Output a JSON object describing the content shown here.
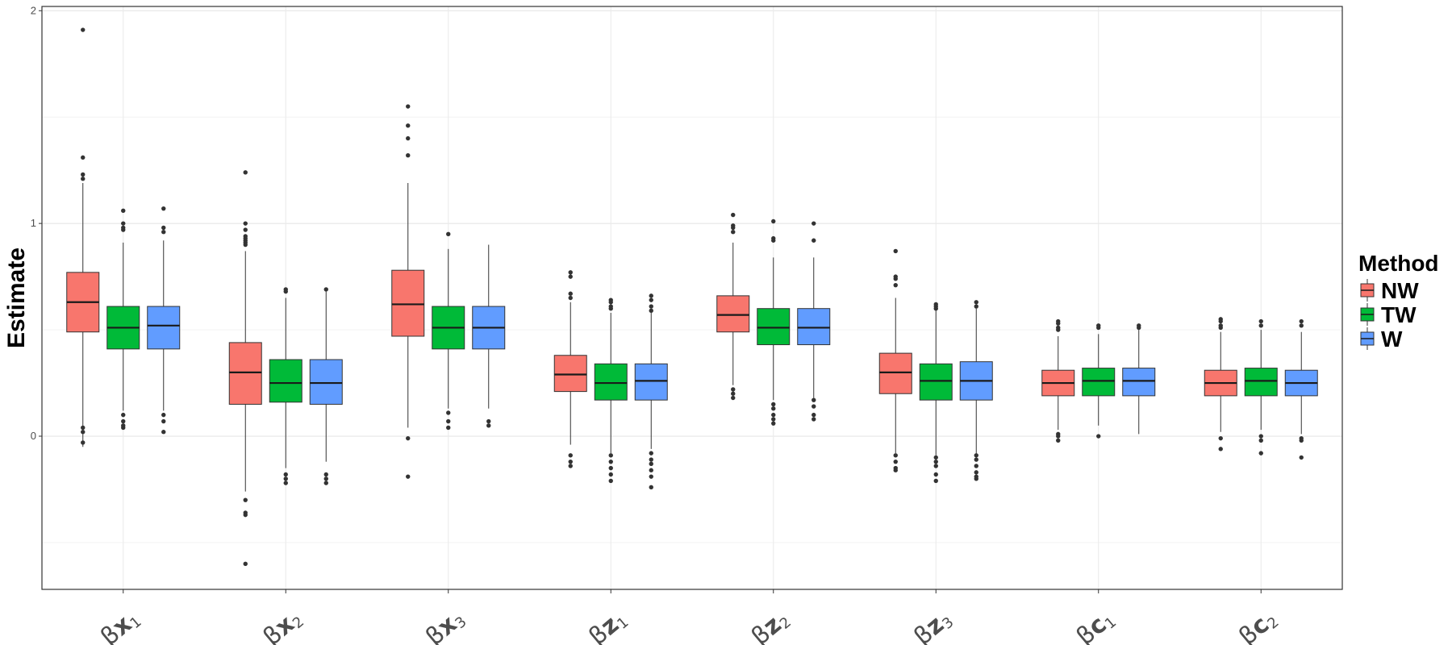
{
  "chart_data": {
    "type": "box",
    "ylabel": "Estimate",
    "ylim": [
      -0.72,
      2.02
    ],
    "yticks": [
      0,
      1,
      2
    ],
    "grid": true,
    "legend": {
      "title": "Method",
      "position": "right"
    },
    "categories": [
      {
        "greek": "β",
        "var": "x",
        "sub": "1"
      },
      {
        "greek": "β",
        "var": "x",
        "sub": "2"
      },
      {
        "greek": "β",
        "var": "x",
        "sub": "3"
      },
      {
        "greek": "β",
        "var": "z",
        "sub": "1"
      },
      {
        "greek": "β",
        "var": "z",
        "sub": "2"
      },
      {
        "greek": "β",
        "var": "z",
        "sub": "3"
      },
      {
        "greek": "β",
        "var": "c",
        "sub": "1"
      },
      {
        "greek": "β",
        "var": "c",
        "sub": "2"
      }
    ],
    "series": [
      {
        "name": "NW",
        "color": "#F8766D",
        "boxes": [
          {
            "lw": -0.05,
            "q1": 0.49,
            "med": 0.63,
            "q3": 0.77,
            "uw": 1.19,
            "out": [
              1.91,
              1.31,
              1.23,
              1.21,
              0.04,
              0.02,
              -0.03
            ]
          },
          {
            "lw": -0.26,
            "q1": 0.15,
            "med": 0.3,
            "q3": 0.44,
            "uw": 0.87,
            "out": [
              1.24,
              1.0,
              0.97,
              0.94,
              0.93,
              0.92,
              0.91,
              0.9,
              -0.3,
              -0.36,
              -0.37,
              -0.6
            ]
          },
          {
            "lw": 0.04,
            "q1": 0.47,
            "med": 0.62,
            "q3": 0.78,
            "uw": 1.19,
            "out": [
              1.55,
              1.46,
              1.4,
              1.32,
              -0.01,
              -0.19
            ]
          },
          {
            "lw": -0.04,
            "q1": 0.21,
            "med": 0.29,
            "q3": 0.38,
            "uw": 0.63,
            "out": [
              0.77,
              0.75,
              0.67,
              0.65,
              -0.09,
              -0.12,
              -0.14
            ]
          },
          {
            "lw": 0.24,
            "q1": 0.49,
            "med": 0.57,
            "q3": 0.66,
            "uw": 0.91,
            "out": [
              1.04,
              0.99,
              0.98,
              0.96,
              0.22,
              0.2,
              0.18
            ]
          },
          {
            "lw": -0.08,
            "q1": 0.2,
            "med": 0.3,
            "q3": 0.39,
            "uw": 0.65,
            "out": [
              0.87,
              0.75,
              0.74,
              0.71,
              -0.09,
              -0.12,
              -0.15,
              -0.16
            ]
          },
          {
            "lw": 0.03,
            "q1": 0.19,
            "med": 0.25,
            "q3": 0.31,
            "uw": 0.47,
            "out": [
              0.54,
              0.53,
              0.51,
              0.5,
              0.01,
              0.0,
              -0.02
            ]
          },
          {
            "lw": 0.02,
            "q1": 0.19,
            "med": 0.25,
            "q3": 0.31,
            "uw": 0.49,
            "out": [
              0.55,
              0.54,
              0.52,
              0.51,
              -0.01,
              -0.06
            ]
          }
        ]
      },
      {
        "name": "TW",
        "color": "#00BA38",
        "boxes": [
          {
            "lw": 0.12,
            "q1": 0.41,
            "med": 0.51,
            "q3": 0.61,
            "uw": 0.91,
            "out": [
              1.06,
              1.0,
              0.98,
              0.97,
              0.1,
              0.07,
              0.05,
              0.04
            ]
          },
          {
            "lw": -0.15,
            "q1": 0.16,
            "med": 0.25,
            "q3": 0.36,
            "uw": 0.65,
            "out": [
              0.69,
              0.68,
              -0.18,
              -0.2,
              -0.22
            ]
          },
          {
            "lw": 0.13,
            "q1": 0.41,
            "med": 0.51,
            "q3": 0.61,
            "uw": 0.88,
            "out": [
              0.95,
              0.11,
              0.07,
              0.04
            ]
          },
          {
            "lw": -0.08,
            "q1": 0.17,
            "med": 0.25,
            "q3": 0.34,
            "uw": 0.58,
            "out": [
              0.64,
              0.63,
              0.61,
              0.6,
              -0.09,
              -0.12,
              -0.15,
              -0.18,
              -0.21
            ]
          },
          {
            "lw": 0.17,
            "q1": 0.43,
            "med": 0.51,
            "q3": 0.6,
            "uw": 0.84,
            "out": [
              1.01,
              0.93,
              0.92,
              0.15,
              0.13,
              0.1,
              0.08,
              0.06
            ]
          },
          {
            "lw": -0.09,
            "q1": 0.17,
            "med": 0.26,
            "q3": 0.34,
            "uw": 0.6,
            "out": [
              0.62,
              0.61,
              0.6,
              -0.1,
              -0.12,
              -0.14,
              -0.18,
              -0.21
            ]
          },
          {
            "lw": 0.05,
            "q1": 0.19,
            "med": 0.26,
            "q3": 0.32,
            "uw": 0.48,
            "out": [
              0.52,
              0.51,
              0.0
            ]
          },
          {
            "lw": 0.03,
            "q1": 0.19,
            "med": 0.26,
            "q3": 0.32,
            "uw": 0.5,
            "out": [
              0.54,
              0.52,
              0.0,
              -0.02,
              -0.08
            ]
          }
        ]
      },
      {
        "name": "W",
        "color": "#619CFF",
        "boxes": [
          {
            "lw": 0.12,
            "q1": 0.41,
            "med": 0.52,
            "q3": 0.61,
            "uw": 0.92,
            "out": [
              1.07,
              0.98,
              0.96,
              0.1,
              0.07,
              0.02
            ]
          },
          {
            "lw": -0.12,
            "q1": 0.15,
            "med": 0.25,
            "q3": 0.36,
            "uw": 0.68,
            "out": [
              0.69,
              -0.18,
              -0.2,
              -0.22
            ]
          },
          {
            "lw": 0.13,
            "q1": 0.41,
            "med": 0.51,
            "q3": 0.61,
            "uw": 0.9,
            "out": [
              0.07,
              0.05
            ]
          },
          {
            "lw": -0.06,
            "q1": 0.17,
            "med": 0.26,
            "q3": 0.34,
            "uw": 0.58,
            "out": [
              0.66,
              0.64,
              0.61,
              0.59,
              -0.08,
              -0.11,
              -0.13,
              -0.16,
              -0.19,
              -0.24
            ]
          },
          {
            "lw": 0.18,
            "q1": 0.43,
            "med": 0.51,
            "q3": 0.6,
            "uw": 0.84,
            "out": [
              1.0,
              0.92,
              0.17,
              0.14,
              0.1,
              0.08
            ]
          },
          {
            "lw": -0.09,
            "q1": 0.17,
            "med": 0.26,
            "q3": 0.35,
            "uw": 0.6,
            "out": [
              0.63,
              0.61,
              -0.09,
              -0.11,
              -0.14,
              -0.17,
              -0.19,
              -0.2
            ]
          },
          {
            "lw": 0.01,
            "q1": 0.19,
            "med": 0.26,
            "q3": 0.32,
            "uw": 0.5,
            "out": [
              0.52,
              0.51
            ]
          },
          {
            "lw": 0.01,
            "q1": 0.19,
            "med": 0.25,
            "q3": 0.31,
            "uw": 0.49,
            "out": [
              0.54,
              0.52,
              -0.01,
              -0.02,
              -0.1
            ]
          }
        ]
      }
    ]
  }
}
